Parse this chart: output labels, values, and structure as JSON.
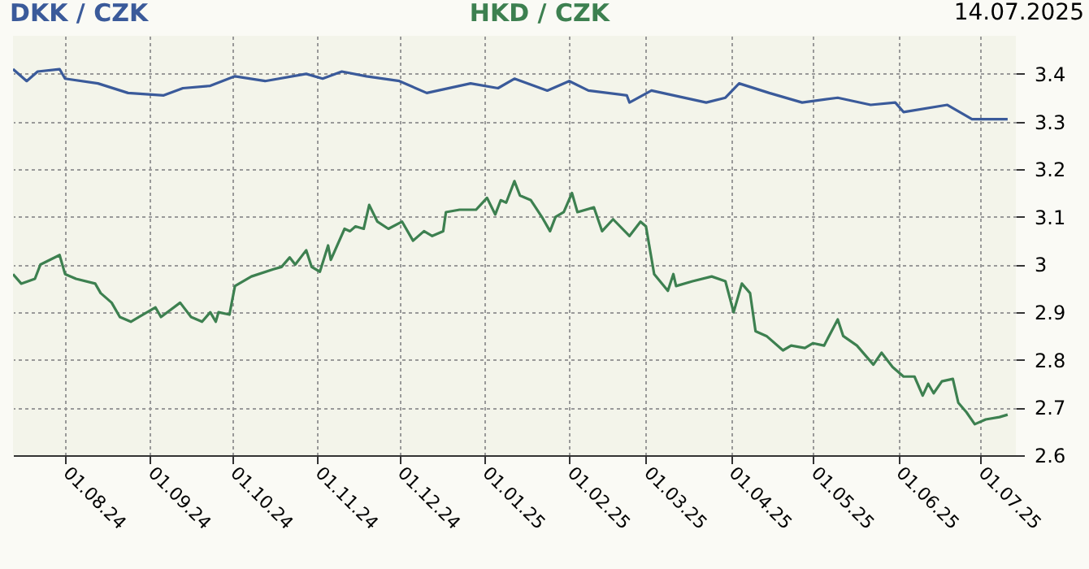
{
  "chart_data": {
    "type": "line",
    "legend": "top",
    "grid": true,
    "annotations": [
      "14.07.2025"
    ],
    "xlim": [
      "2024-07-13",
      "2025-07-14"
    ],
    "ylim": [
      2.6,
      3.48
    ],
    "xticks": [
      {
        "value": "2024-08-01",
        "label": "01.08.24"
      },
      {
        "value": "2024-09-01",
        "label": "01.09.24"
      },
      {
        "value": "2024-10-01",
        "label": "01.10.24"
      },
      {
        "value": "2024-11-01",
        "label": "01.11.24"
      },
      {
        "value": "2024-12-01",
        "label": "01.12.24"
      },
      {
        "value": "2025-01-01",
        "label": "01.01.25"
      },
      {
        "value": "2025-02-01",
        "label": "01.02.25"
      },
      {
        "value": "2025-03-01",
        "label": "01.03.25"
      },
      {
        "value": "2025-04-01",
        "label": "01.04.25"
      },
      {
        "value": "2025-05-01",
        "label": "01.05.25"
      },
      {
        "value": "2025-06-01",
        "label": "01.06.25"
      },
      {
        "value": "2025-07-01",
        "label": "01.07.25"
      }
    ],
    "yticks": [
      2.6,
      2.7,
      2.8,
      2.9,
      {
        "value": 3.0,
        "label": "3"
      },
      3.1,
      3.2,
      3.3,
      3.4
    ],
    "series": [
      {
        "name": "DKK / CZK",
        "color": "#3a5a9a",
        "x": [
          "2024-07-13",
          "2024-07-18",
          "2024-07-22",
          "2024-07-30",
          "2024-08-01",
          "2024-08-13",
          "2024-08-24",
          "2024-09-06",
          "2024-09-13",
          "2024-09-23",
          "2024-10-02",
          "2024-10-13",
          "2024-10-28",
          "2024-11-03",
          "2024-11-10",
          "2024-11-19",
          "2024-12-01",
          "2024-12-11",
          "2024-12-27",
          "2025-01-06",
          "2025-01-12",
          "2025-01-24",
          "2025-02-01",
          "2025-02-08",
          "2025-02-22",
          "2025-02-23",
          "2025-03-03",
          "2025-03-23",
          "2025-03-30",
          "2025-04-04",
          "2025-04-15",
          "2025-04-27",
          "2025-05-10",
          "2025-05-22",
          "2025-05-31",
          "2025-06-03",
          "2025-06-19",
          "2025-06-28",
          "2025-07-11"
        ],
        "values": [
          3.41,
          3.385,
          3.405,
          3.41,
          3.39,
          3.38,
          3.36,
          3.355,
          3.37,
          3.375,
          3.395,
          3.385,
          3.4,
          3.39,
          3.405,
          3.395,
          3.385,
          3.36,
          3.38,
          3.37,
          3.39,
          3.365,
          3.385,
          3.365,
          3.355,
          3.34,
          3.365,
          3.34,
          3.35,
          3.38,
          3.36,
          3.34,
          3.35,
          3.335,
          3.34,
          3.32,
          3.335,
          3.305,
          3.305
        ]
      },
      {
        "name": "HKD / CZK",
        "color": "#3d8050",
        "x": [
          "2024-07-13",
          "2024-07-16",
          "2024-07-21",
          "2024-07-23",
          "2024-07-30",
          "2024-08-01",
          "2024-08-05",
          "2024-08-12",
          "2024-08-14",
          "2024-08-18",
          "2024-08-21",
          "2024-08-25",
          "2024-08-28",
          "2024-09-03",
          "2024-09-05",
          "2024-09-12",
          "2024-09-16",
          "2024-09-20",
          "2024-09-23",
          "2024-09-25",
          "2024-09-26",
          "2024-09-30",
          "2024-10-02",
          "2024-10-08",
          "2024-10-16",
          "2024-10-19",
          "2024-10-22",
          "2024-10-24",
          "2024-10-28",
          "2024-10-30",
          "2024-11-02",
          "2024-11-05",
          "2024-11-06",
          "2024-11-11",
          "2024-11-13",
          "2024-11-15",
          "2024-11-18",
          "2024-11-20",
          "2024-11-23",
          "2024-11-27",
          "2024-12-02",
          "2024-12-06",
          "2024-12-10",
          "2024-12-13",
          "2024-12-17",
          "2024-12-18",
          "2024-12-23",
          "2024-12-29",
          "2025-01-02",
          "2025-01-05",
          "2025-01-07",
          "2025-01-09",
          "2025-01-12",
          "2025-01-14",
          "2025-01-18",
          "2025-01-22",
          "2025-01-25",
          "2025-01-27",
          "2025-01-30",
          "2025-02-02",
          "2025-02-04",
          "2025-02-10",
          "2025-02-13",
          "2025-02-17",
          "2025-02-23",
          "2025-02-27",
          "2025-03-01",
          "2025-03-04",
          "2025-03-09",
          "2025-03-11",
          "2025-03-12",
          "2025-03-18",
          "2025-03-25",
          "2025-03-30",
          "2025-04-02",
          "2025-04-05",
          "2025-04-08",
          "2025-04-10",
          "2025-04-14",
          "2025-04-20",
          "2025-04-23",
          "2025-04-28",
          "2025-05-01",
          "2025-05-05",
          "2025-05-10",
          "2025-05-12",
          "2025-05-17",
          "2025-05-20",
          "2025-05-23",
          "2025-05-26",
          "2025-05-30",
          "2025-06-03",
          "2025-06-07",
          "2025-06-10",
          "2025-06-12",
          "2025-06-14",
          "2025-06-17",
          "2025-06-21",
          "2025-06-23",
          "2025-06-26",
          "2025-06-29",
          "2025-07-03",
          "2025-07-08",
          "2025-07-11"
        ],
        "values": [
          2.98,
          2.96,
          2.97,
          3.0,
          3.02,
          2.98,
          2.97,
          2.96,
          2.94,
          2.92,
          2.89,
          2.88,
          2.89,
          2.91,
          2.89,
          2.92,
          2.89,
          2.88,
          2.9,
          2.88,
          2.9,
          2.895,
          2.955,
          2.975,
          2.99,
          2.995,
          3.015,
          3.0,
          3.03,
          2.995,
          2.985,
          3.04,
          3.01,
          3.075,
          3.07,
          3.08,
          3.075,
          3.125,
          3.09,
          3.075,
          3.09,
          3.05,
          3.07,
          3.06,
          3.07,
          3.11,
          3.115,
          3.115,
          3.14,
          3.105,
          3.135,
          3.13,
          3.175,
          3.145,
          3.135,
          3.1,
          3.07,
          3.1,
          3.11,
          3.15,
          3.11,
          3.12,
          3.07,
          3.095,
          3.06,
          3.09,
          3.08,
          2.98,
          2.945,
          2.98,
          2.955,
          2.965,
          2.975,
          2.965,
          2.9,
          2.96,
          2.94,
          2.86,
          2.85,
          2.82,
          2.83,
          2.825,
          2.835,
          2.83,
          2.885,
          2.85,
          2.83,
          2.81,
          2.79,
          2.815,
          2.785,
          2.765,
          2.765,
          2.725,
          2.75,
          2.73,
          2.755,
          2.76,
          2.71,
          2.69,
          2.665,
          2.675,
          2.68,
          2.685
        ]
      }
    ]
  }
}
